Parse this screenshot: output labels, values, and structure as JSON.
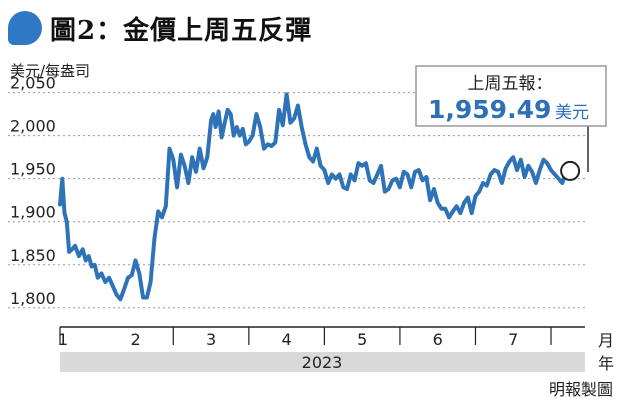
{
  "title": "圖2：金價上周五反彈",
  "credit": "明報製圖",
  "colors": {
    "line": "#2e73b8",
    "accent": "#2f78c4",
    "callout_value": "#2e6fb5",
    "year_band": "#d9d9d9"
  },
  "callout": {
    "label": "上周五報：",
    "value": "1,959.49",
    "unit": "美元"
  },
  "chart_data": {
    "type": "line",
    "title": "金價上周五反彈",
    "ylabel": "美元/每盎司",
    "xlabel": "月",
    "year_label": "年",
    "year": "2023",
    "ylim": [
      1780,
      2060
    ],
    "yticks": [
      {
        "value": 1800,
        "label": "1,800"
      },
      {
        "value": 1850,
        "label": "1,850"
      },
      {
        "value": 1900,
        "label": "1,900"
      },
      {
        "value": 1950,
        "label": "1,950"
      },
      {
        "value": 2000,
        "label": "2,000"
      },
      {
        "value": 2050,
        "label": "2,050"
      }
    ],
    "xlim": [
      1,
      7.95
    ],
    "month_ticks": [
      {
        "m": 1,
        "label": "1"
      },
      {
        "m": 2,
        "label": "2"
      },
      {
        "m": 3,
        "label": "3"
      },
      {
        "m": 4,
        "label": "4"
      },
      {
        "m": 5,
        "label": "5"
      },
      {
        "m": 6,
        "label": "6"
      },
      {
        "m": 7,
        "label": "7"
      }
    ],
    "series": [
      {
        "x": [
          1.0,
          1.03,
          1.06,
          1.09,
          1.12,
          1.16,
          1.2,
          1.25,
          1.3,
          1.34,
          1.38,
          1.42,
          1.46,
          1.5,
          1.55,
          1.6,
          1.65,
          1.7,
          1.75,
          1.8,
          1.85,
          1.9,
          1.95,
          2.0,
          2.05,
          2.1,
          2.15,
          2.2,
          2.25,
          2.3,
          2.35,
          2.4,
          2.45,
          2.5,
          2.55,
          2.6,
          2.65,
          2.7,
          2.75,
          2.8,
          2.85,
          2.9,
          2.95,
          3.0,
          3.03,
          3.06,
          3.1,
          3.14,
          3.18,
          3.22,
          3.26,
          3.3,
          3.34,
          3.38,
          3.42,
          3.46,
          3.5,
          3.55,
          3.6,
          3.65,
          3.7,
          3.75,
          3.8,
          3.85,
          3.9,
          3.95,
          4.0,
          4.05,
          4.1,
          4.15,
          4.2,
          4.25,
          4.3,
          4.35,
          4.4,
          4.45,
          4.5,
          4.55,
          4.6,
          4.65,
          4.7,
          4.75,
          4.8,
          4.85,
          4.9,
          4.95,
          5.0,
          5.05,
          5.1,
          5.15,
          5.2,
          5.25,
          5.3,
          5.35,
          5.4,
          5.45,
          5.5,
          5.55,
          5.6,
          5.65,
          5.7,
          5.75,
          5.8,
          5.85,
          5.9,
          5.95,
          6.0,
          6.05,
          6.1,
          6.15,
          6.2,
          6.25,
          6.3,
          6.35,
          6.4,
          6.45,
          6.5,
          6.55,
          6.6,
          6.65,
          6.7,
          6.75,
          6.8,
          6.85,
          6.9,
          6.95,
          7.0,
          7.05,
          7.1,
          7.15,
          7.2,
          7.25,
          7.3,
          7.35,
          7.4,
          7.45,
          7.5,
          7.55,
          7.6,
          7.65,
          7.7
        ],
        "y": [
          1920,
          1950,
          1910,
          1900,
          1865,
          1868,
          1872,
          1860,
          1868,
          1855,
          1860,
          1848,
          1850,
          1835,
          1840,
          1830,
          1835,
          1825,
          1815,
          1810,
          1822,
          1835,
          1838,
          1855,
          1840,
          1812,
          1812,
          1830,
          1880,
          1912,
          1905,
          1918,
          1985,
          1972,
          1940,
          1978,
          1965,
          1945,
          1975,
          1958,
          1985,
          1962,
          1975,
          2018,
          2025,
          2010,
          2028,
          1998,
          2015,
          2030,
          2025,
          2000,
          2010,
          2000,
          2008,
          1990,
          1993,
          2000,
          2025,
          2010,
          1985,
          1990,
          1988,
          1992,
          2030,
          2012,
          2048,
          2015,
          2020,
          2035,
          2010,
          1990,
          1975,
          1970,
          1985,
          1965,
          1960,
          1945,
          1955,
          1950,
          1955,
          1940,
          1938,
          1955,
          1948,
          1968,
          1965,
          1968,
          1948,
          1945,
          1955,
          1965,
          1935,
          1938,
          1948,
          1950,
          1940,
          1958,
          1955,
          1940,
          1958,
          1960,
          1948,
          1952,
          1925,
          1938,
          1922,
          1915,
          1915,
          1905,
          1912,
          1918,
          1910,
          1922,
          1928,
          1910,
          1930,
          1935,
          1945,
          1942,
          1955,
          1960,
          1958,
          1945,
          1962,
          1970,
          1975,
          1960,
          1972,
          1952,
          1965,
          1958,
          1945,
          1960,
          1972,
          1968,
          1960,
          1955,
          1950,
          1945,
          1959
        ]
      }
    ]
  }
}
